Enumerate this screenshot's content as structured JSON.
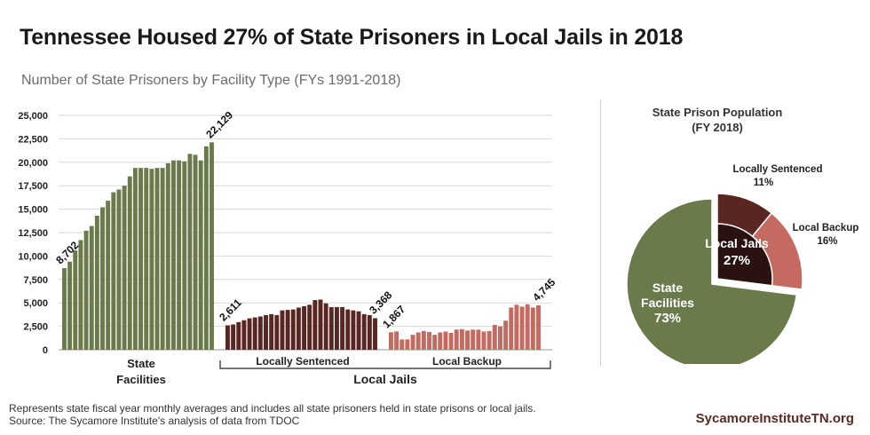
{
  "title": "Tennessee Housed 27% of State Prisoners in Local Jails in 2018",
  "subtitle": "Number of State Prisoners by Facility Type (FYs 1991-2018)",
  "colors": {
    "state_facilities": "#6b7a4b",
    "locally_sentenced": "#5a2622",
    "local_backup": "#c56a60",
    "local_jails_slice": "#2a1210"
  },
  "chart_data": [
    {
      "type": "bar",
      "ylim": [
        0,
        25000
      ],
      "y_ticks": [
        "0",
        "2,500",
        "5,000",
        "7,500",
        "10,000",
        "12,500",
        "15,000",
        "17,500",
        "20,000",
        "22,500",
        "25,000"
      ],
      "grid": true,
      "series": [
        {
          "name": "State Facilities",
          "years": "FY1991-FY2018",
          "values": [
            8702,
            9400,
            10600,
            11700,
            12700,
            13200,
            14300,
            15200,
            15900,
            16800,
            17100,
            17500,
            18500,
            19400,
            19400,
            19400,
            19300,
            19400,
            19400,
            19900,
            20200,
            20200,
            20100,
            20900,
            20800,
            20200,
            21700,
            22129
          ],
          "labels": {
            "first": "8,702",
            "last": "22,129"
          }
        },
        {
          "name": "Locally Sentenced",
          "years": "FY1991-FY2018",
          "values": [
            2611,
            2700,
            2950,
            3150,
            3350,
            3450,
            3550,
            3700,
            3800,
            3700,
            4200,
            4250,
            4300,
            4500,
            4650,
            4800,
            5300,
            5350,
            4950,
            4550,
            4550,
            4550,
            4300,
            4200,
            4100,
            3800,
            3700,
            3368
          ],
          "labels": {
            "first": "2,611",
            "last": "3,368"
          }
        },
        {
          "name": "Local Backup",
          "years": "FY1991-FY2018",
          "values": [
            1867,
            1950,
            1100,
            1100,
            1600,
            1850,
            2000,
            1900,
            1600,
            1850,
            1950,
            1800,
            2150,
            2200,
            2050,
            2150,
            2150,
            1950,
            2000,
            2650,
            2500,
            3100,
            4500,
            4800,
            4600,
            4850,
            4500,
            4745
          ],
          "labels": {
            "first": "1,867",
            "last": "4,745"
          }
        }
      ],
      "group_labels": [
        "State\nFacilities",
        "Locally Sentenced",
        "Local Backup",
        "Local Jails"
      ]
    },
    {
      "type": "pie",
      "title": "State Prison Population\n(FY 2018)",
      "slices": [
        {
          "name": "State\nFacilities",
          "value": 73,
          "label": "73%"
        },
        {
          "name": "Locally Sentenced",
          "value": 11,
          "label": "11%"
        },
        {
          "name": "Local Backup",
          "value": 16,
          "label": "16%"
        }
      ],
      "center_label": {
        "name": "Local Jails",
        "value": "27%"
      }
    }
  ],
  "footnote": {
    "line1": "Represents state fiscal year monthly averages and includes all state prisoners held in state prisons or local jails.",
    "line2": "Source: The Sycamore Institute's analysis of data from TDOC"
  },
  "brand": "SycamoreInstituteTN.org"
}
